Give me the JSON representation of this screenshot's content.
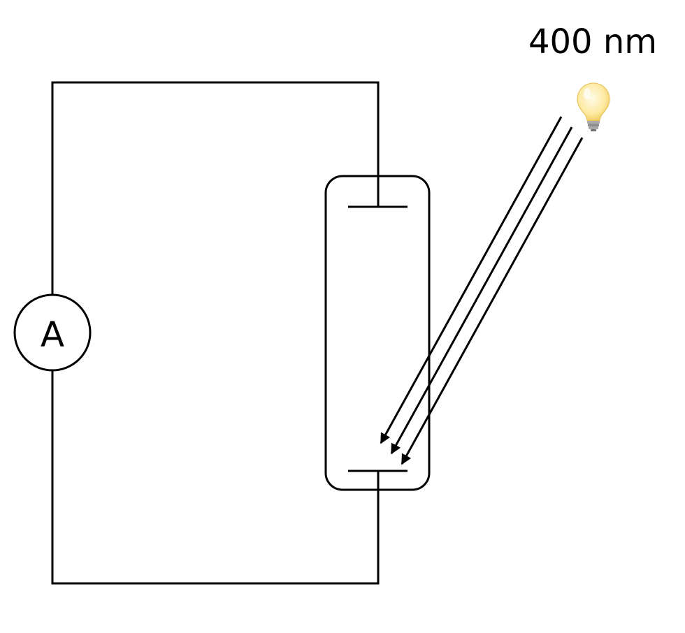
{
  "diagram": {
    "light_label": "400 nm",
    "ammeter_label": "A"
  },
  "colors": {
    "stroke": "#000000",
    "background": "#ffffff",
    "bulb_glass": "#fde9a0",
    "bulb_glow": "#fff7d6",
    "bulb_base": "#9a9a9a"
  },
  "icons": {
    "light_source": "light-bulb-icon"
  }
}
